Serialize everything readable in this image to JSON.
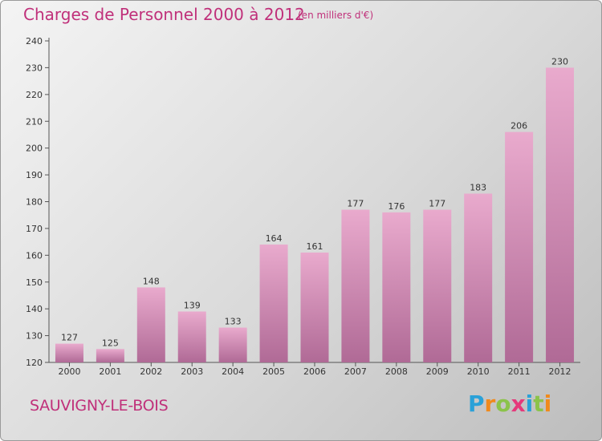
{
  "header": {
    "title": "Charges de Personnel 2000 à 2012",
    "subtitle": "(en milliers d'€)"
  },
  "footer": {
    "city": "SAUVIGNY-LE-BOIS"
  },
  "logo": {
    "text": "Proxiti",
    "letters": [
      "P",
      "r",
      "o",
      "x",
      "i",
      "t",
      "i"
    ],
    "colors": [
      "#2aa1d8",
      "#f08a1c",
      "#8bc34a",
      "#e5397b",
      "#2aa1d8",
      "#8bc34a",
      "#f08a1c"
    ]
  },
  "chart_data": {
    "type": "bar",
    "title": "Charges de Personnel 2000 à 2012",
    "subtitle": "(en milliers d'€)",
    "categories": [
      "2000",
      "2001",
      "2002",
      "2003",
      "2004",
      "2005",
      "2006",
      "2007",
      "2008",
      "2009",
      "2010",
      "2011",
      "2012"
    ],
    "values": [
      127,
      125,
      148,
      139,
      133,
      164,
      161,
      177,
      176,
      177,
      183,
      206,
      230
    ],
    "ylim": [
      120,
      240
    ],
    "yticks": [
      120,
      130,
      140,
      150,
      160,
      170,
      180,
      190,
      200,
      210,
      220,
      230,
      240
    ],
    "grid": false,
    "data_labels": true,
    "bar_color_top": "#e9aacd",
    "bar_color_bottom": "#b06a96",
    "label_color": "#333333"
  }
}
